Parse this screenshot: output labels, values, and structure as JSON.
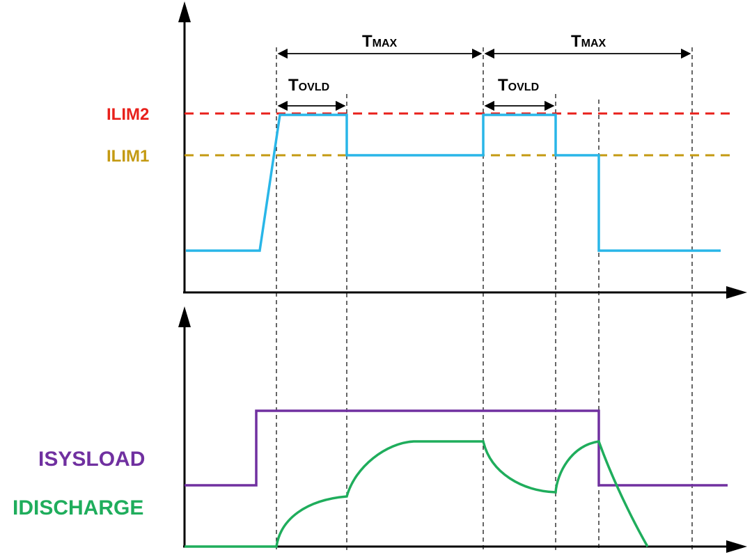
{
  "colors": {
    "ilim2": "#e8201b",
    "ilim1": "#c49a12",
    "current_limit_trace": "#29b6e8",
    "isysload": "#7030a0",
    "idischarge": "#1fad5c",
    "axes": "#000000"
  },
  "top_panel": {
    "ilim2_label": "ILIM2",
    "ilim1_label": "ILIM1"
  },
  "bottom_panel": {
    "isysload_label": "ISYSLOAD",
    "idischarge_label": "IDISCHARGE"
  },
  "timing": {
    "tmax_1": {
      "main": "T",
      "sub": "MAX"
    },
    "tmax_2": {
      "main": "T",
      "sub": "MAX"
    },
    "tovld_1": {
      "main": "T",
      "sub": "OVLD"
    },
    "tovld_2": {
      "main": "T",
      "sub": "OVLD"
    }
  }
}
